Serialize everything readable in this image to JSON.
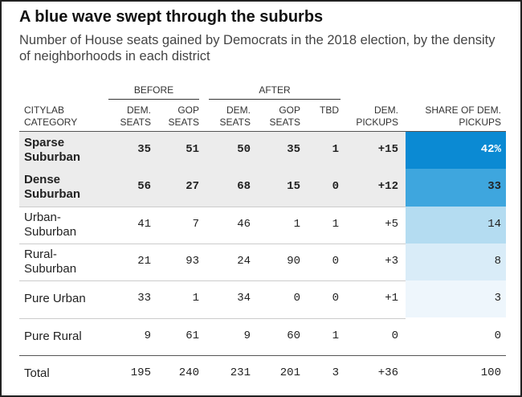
{
  "title": "A blue wave swept through the suburbs",
  "subtitle": "Number of House seats gained by Democrats in the 2018 election, by the density of neighborhoods in each district",
  "table": {
    "groups": [
      "BEFORE",
      "AFTER"
    ],
    "columns": [
      "CITYLAB CATEGORY",
      "DEM. SEATS",
      "GOP SEATS",
      "DEM. SEATS",
      "GOP SEATS",
      "TBD",
      "DEM. PICKUPS",
      "SHARE OF DEM. PICKUPS"
    ],
    "rows": [
      [
        "Sparse Suburban",
        "35",
        "51",
        "50",
        "35",
        "1",
        "+15",
        "42%"
      ],
      [
        "Dense Suburban",
        "56",
        "27",
        "68",
        "15",
        "0",
        "+12",
        "33"
      ],
      [
        "Urban-Suburban",
        "41",
        "7",
        "46",
        "1",
        "1",
        "+5",
        "14"
      ],
      [
        "Rural-Suburban",
        "21",
        "93",
        "24",
        "90",
        "0",
        "+3",
        "8"
      ],
      [
        "Pure Urban",
        "33",
        "1",
        "34",
        "0",
        "0",
        "+1",
        "3"
      ],
      [
        "Pure Rural",
        "9",
        "61",
        "9",
        "60",
        "1",
        "0",
        "0"
      ],
      [
        "Total",
        "195",
        "240",
        "231",
        "201",
        "3",
        "+36",
        "100"
      ]
    ],
    "highlighted_rows": [
      true,
      true,
      false,
      false,
      false,
      false,
      false
    ],
    "share_colors": [
      "#0b8ad3",
      "#3ea6de",
      "#b4dcf1",
      "#d9ecf8",
      "#eef6fc",
      "#ffffff",
      "#ffffff"
    ]
  }
}
